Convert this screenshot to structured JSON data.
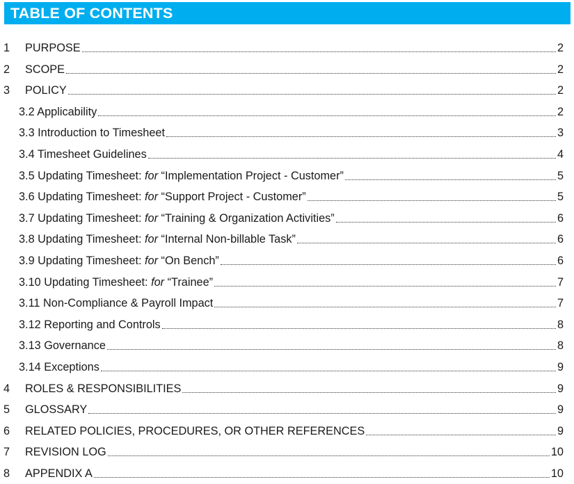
{
  "header": {
    "title": "TABLE OF CONTENTS"
  },
  "entries": [
    {
      "level": 1,
      "num": "1",
      "title": "PURPOSE",
      "page": "2"
    },
    {
      "level": 1,
      "num": "2",
      "title": "SCOPE",
      "page": "2"
    },
    {
      "level": 1,
      "num": "3",
      "title": "POLICY",
      "page": "2"
    },
    {
      "level": 2,
      "title": "3.2 Applicability",
      "page": "2"
    },
    {
      "level": 2,
      "title": "3.3 Introduction to Timesheet",
      "page": "3"
    },
    {
      "level": 2,
      "title": "3.4 Timesheet Guidelines",
      "page": "4"
    },
    {
      "level": 2,
      "title": "3.5 Updating Timesheet: ",
      "italic": "for",
      "rest": " “Implementation Project - Customer”",
      "page": "5"
    },
    {
      "level": 2,
      "title": "3.6 Updating Timesheet: ",
      "italic": "for",
      "rest": " “Support Project - Customer”",
      "page": "5"
    },
    {
      "level": 2,
      "title": "3.7 Updating Timesheet: ",
      "italic": "for",
      "rest": " “Training & Organization Activities”",
      "page": "6"
    },
    {
      "level": 2,
      "title": "3.8 Updating Timesheet: ",
      "italic": "for",
      "rest": " “Internal Non-billable Task”",
      "page": "6"
    },
    {
      "level": 2,
      "title": "3.9 Updating Timesheet: ",
      "italic": "for",
      "rest": " “On Bench”",
      "page": "6"
    },
    {
      "level": 2,
      "title": "3.10 Updating Timesheet: ",
      "italic": "for",
      "rest": " “Trainee”",
      "page": "7"
    },
    {
      "level": 2,
      "title": "3.11 Non-Compliance & Payroll Impact",
      "page": "7"
    },
    {
      "level": 2,
      "title": "3.12 Reporting and Controls",
      "page": "8"
    },
    {
      "level": 2,
      "title": "3.13 Governance",
      "page": "8"
    },
    {
      "level": 2,
      "title": "3.14 Exceptions",
      "page": "9"
    },
    {
      "level": 1,
      "num": "4",
      "title": "ROLES & RESPONSIBILITIES",
      "page": "9"
    },
    {
      "level": 1,
      "num": "5",
      "title": "GLOSSARY",
      "page": "9"
    },
    {
      "level": 1,
      "num": "6",
      "title": "RELATED POLICIES, PROCEDURES, OR OTHER REFERENCES",
      "page": "9"
    },
    {
      "level": 1,
      "num": "7",
      "title": "REVISION LOG",
      "page": "10"
    },
    {
      "level": 1,
      "num": "8",
      "title": "APPENDIX A",
      "page": "10"
    }
  ]
}
